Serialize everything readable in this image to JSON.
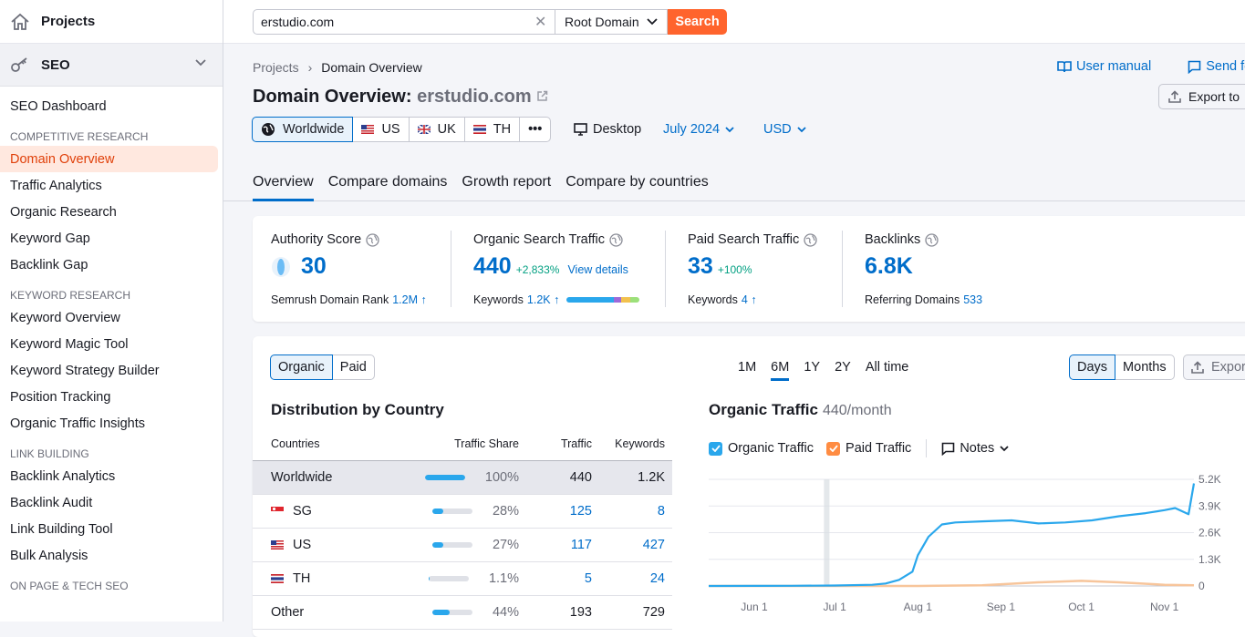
{
  "sidebar": {
    "projects_label": "Projects",
    "seo_label": "SEO",
    "dashboard": "SEO Dashboard",
    "groups": [
      {
        "title": "COMPETITIVE RESEARCH",
        "items": [
          "Domain Overview",
          "Traffic Analytics",
          "Organic Research",
          "Keyword Gap",
          "Backlink Gap"
        ]
      },
      {
        "title": "KEYWORD RESEARCH",
        "items": [
          "Keyword Overview",
          "Keyword Magic Tool",
          "Keyword Strategy Builder",
          "Position Tracking",
          "Organic Traffic Insights"
        ]
      },
      {
        "title": "LINK BUILDING",
        "items": [
          "Backlink Analytics",
          "Backlink Audit",
          "Link Building Tool",
          "Bulk Analysis"
        ]
      },
      {
        "title": "ON PAGE & TECH SEO",
        "items": []
      }
    ],
    "active_item": "Domain Overview"
  },
  "search": {
    "value": "erstudio.com",
    "scope": "Root Domain",
    "button": "Search"
  },
  "breadcrumb": {
    "root": "Projects",
    "current": "Domain Overview"
  },
  "header_links": {
    "manual": "User manual",
    "feedback": "Send feed",
    "export": "Export to"
  },
  "title": {
    "prefix": "Domain Overview:",
    "domain": "erstudio.com"
  },
  "regions": [
    {
      "label": "Worldwide",
      "active": true
    },
    {
      "label": "US"
    },
    {
      "label": "UK"
    },
    {
      "label": "TH"
    },
    {
      "label": "•••"
    }
  ],
  "filters": {
    "device": "Desktop",
    "date": "July 2024",
    "currency": "USD"
  },
  "tabs": [
    "Overview",
    "Compare domains",
    "Growth report",
    "Compare by countries"
  ],
  "kpis": {
    "authority": {
      "title": "Authority Score",
      "value": "30",
      "sub_label": "Semrush Domain Rank",
      "sub_value": "1.2M ↑"
    },
    "organic": {
      "title": "Organic Search Traffic",
      "value": "440",
      "change": "+2,833%",
      "link": "View details",
      "sub_label": "Keywords",
      "sub_value": "1.2K ↑"
    },
    "paid": {
      "title": "Paid Search Traffic",
      "value": "33",
      "change": "+100%",
      "sub_label": "Keywords",
      "sub_value": "4 ↑"
    },
    "backlinks": {
      "title": "Backlinks",
      "value": "6.8K",
      "sub_label": "Referring Domains",
      "sub_value": "533"
    }
  },
  "distribution": {
    "toggle": [
      "Organic",
      "Paid"
    ],
    "title": "Distribution by Country",
    "headers": [
      "Countries",
      "Traffic Share",
      "Traffic",
      "Keywords"
    ],
    "rows": [
      {
        "country": "Worldwide",
        "share": "100%",
        "share_value": 100,
        "traffic": "440",
        "keywords": "1.2K"
      },
      {
        "country": "SG",
        "share": "28%",
        "share_value": 28,
        "traffic": "125",
        "keywords": "8"
      },
      {
        "country": "US",
        "share": "27%",
        "share_value": 27,
        "traffic": "117",
        "keywords": "427"
      },
      {
        "country": "TH",
        "share": "1.1%",
        "share_value": 1.1,
        "traffic": "5",
        "keywords": "24"
      },
      {
        "country": "Other",
        "share": "44%",
        "share_value": 44,
        "traffic": "193",
        "keywords": "729"
      }
    ]
  },
  "periods": [
    "1M",
    "6M",
    "1Y",
    "2Y",
    "All time"
  ],
  "granularity": [
    "Days",
    "Months"
  ],
  "chart_export": "Expor",
  "chart_legend": {
    "organic": "Organic Traffic",
    "paid": "Paid Traffic",
    "notes": "Notes"
  },
  "colors": {
    "accent": "#006dca",
    "brand": "#ff642d",
    "organic": "#2aa7ec",
    "paid": "#f7c59b"
  },
  "chart_data": {
    "type": "line",
    "title": "Organic Traffic",
    "subtitle": "440/month",
    "x_ticks": [
      "Jun 1",
      "Jul 1",
      "Aug 1",
      "Sep 1",
      "Oct 1",
      "Nov 1"
    ],
    "y_ticks": [
      "5.2K",
      "3.9K",
      "2.6K",
      "1.3K",
      "0"
    ],
    "ylim": [
      0,
      5200
    ],
    "series": [
      {
        "name": "Organic Traffic",
        "x": [
          "May 15",
          "Jun 1",
          "Jun 15",
          "Jul 1",
          "Jul 15",
          "Jul 20",
          "Jul 25",
          "Jul 30",
          "Aug 1",
          "Aug 5",
          "Aug 10",
          "Aug 15",
          "Aug 25",
          "Sep 5",
          "Sep 15",
          "Sep 25",
          "Oct 5",
          "Oct 15",
          "Oct 25",
          "Nov 1",
          "Nov 5",
          "Nov 10",
          "Nov 12"
        ],
        "values": [
          0,
          5,
          10,
          20,
          60,
          120,
          300,
          700,
          1500,
          2400,
          3000,
          3100,
          3150,
          3200,
          3050,
          3100,
          3200,
          3400,
          3550,
          3700,
          3800,
          3500,
          5000
        ]
      },
      {
        "name": "Paid Traffic",
        "x": [
          "May 15",
          "Aug 1",
          "Aug 25",
          "Sep 15",
          "Oct 1",
          "Oct 15",
          "Nov 1",
          "Nov 12"
        ],
        "values": [
          0,
          0,
          30,
          180,
          250,
          180,
          60,
          30
        ]
      }
    ]
  }
}
